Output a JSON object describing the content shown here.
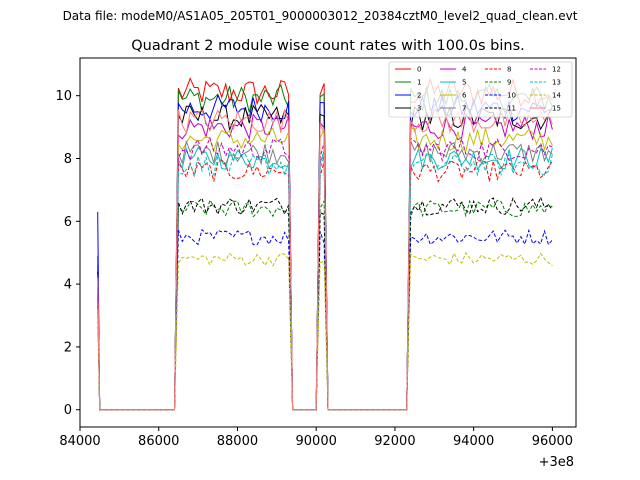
{
  "figure": {
    "suptitle": "Data file: modeM0/AS1A05_205T01_9000003012_20384cztM0_level2_quad_clean.evt",
    "title": "Quadrant 2 module wise count rates with 100.0s bins."
  },
  "chart_data": {
    "type": "line",
    "title": "Quadrant 2 module wise count rates with 100.0s bins.",
    "xlabel": "",
    "ylabel": "",
    "x_offset_label": "+3e8",
    "xlim": [
      84000,
      96600
    ],
    "ylim": [
      -0.55,
      11.2
    ],
    "xticks": [
      84000,
      86000,
      88000,
      90000,
      92000,
      94000,
      96000
    ],
    "yticks": [
      0,
      2,
      4,
      6,
      8,
      10
    ],
    "grid": false,
    "legend_position": "top-right",
    "legend_columns": 4,
    "bin_seconds": 100,
    "segments": [
      {
        "start": 84450,
        "end": 84450,
        "level": "spike"
      },
      {
        "start": 84500,
        "end": 86400,
        "level": "zero"
      },
      {
        "start": 86500,
        "end": 89300,
        "level": "on"
      },
      {
        "start": 89400,
        "end": 90000,
        "level": "zero"
      },
      {
        "start": 90100,
        "end": 90200,
        "level": "on"
      },
      {
        "start": 90300,
        "end": 92300,
        "level": "zero"
      },
      {
        "start": 92400,
        "end": 96000,
        "level": "on"
      }
    ],
    "series": [
      {
        "name": "0",
        "color": "#ff0000",
        "dash": "solid",
        "level": 10.1,
        "spike": 4.9
      },
      {
        "name": "1",
        "color": "#008000",
        "dash": "solid",
        "level": 9.9,
        "spike": 4.6
      },
      {
        "name": "2",
        "color": "#0000ff",
        "dash": "solid",
        "level": 9.6,
        "spike": 6.3
      },
      {
        "name": "3",
        "color": "#000000",
        "dash": "solid",
        "level": 9.3,
        "spike": 4.4
      },
      {
        "name": "4",
        "color": "#bf00bf",
        "dash": "solid",
        "level": 9.0,
        "spike": 4.3
      },
      {
        "name": "5",
        "color": "#00bfbf",
        "dash": "solid",
        "level": 8.0,
        "spike": 3.8
      },
      {
        "name": "6",
        "color": "#bfbf00",
        "dash": "solid",
        "level": 8.6,
        "spike": 4.1
      },
      {
        "name": "7",
        "color": "#808080",
        "dash": "solid",
        "level": 8.2,
        "spike": 3.9
      },
      {
        "name": "8",
        "color": "#ff0000",
        "dash": "dashed",
        "level": 7.6,
        "spike": 3.7
      },
      {
        "name": "9",
        "color": "#008000",
        "dash": "dashed",
        "level": 6.4,
        "spike": 3.5
      },
      {
        "name": "10",
        "color": "#0000ff",
        "dash": "dashed",
        "level": 5.5,
        "spike": 3.3
      },
      {
        "name": "11",
        "color": "#000000",
        "dash": "dashed",
        "level": 6.5,
        "spike": 3.6
      },
      {
        "name": "12",
        "color": "#bf00bf",
        "dash": "dashed",
        "level": 8.3,
        "spike": 3.9
      },
      {
        "name": "13",
        "color": "#00bfbf",
        "dash": "dashed",
        "level": 7.8,
        "spike": 3.8
      },
      {
        "name": "14",
        "color": "#bfbf00",
        "dash": "dashed",
        "level": 4.8,
        "spike": 3.1
      },
      {
        "name": "15",
        "color": "#ff7f7f",
        "dash": "solid",
        "level": 9.2,
        "spike": 4.2
      }
    ]
  }
}
